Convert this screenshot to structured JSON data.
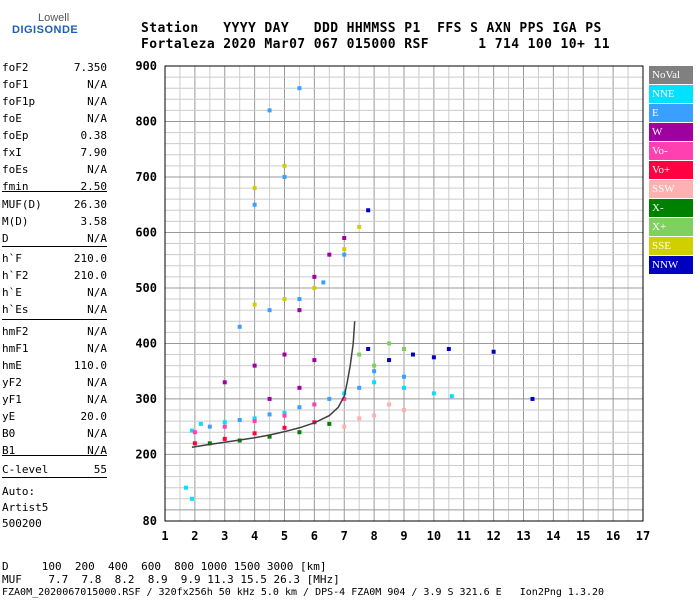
{
  "logo": {
    "line1": "Lowell",
    "line2": "DIGISONDE"
  },
  "header": {
    "row1": "Station   YYYY DAY   DDD HHMMSS P1  FFS S AXN PPS IGA PS",
    "row2": "Fortaleza 2020 Mar07 067 015000 RSF      1 714 100 10+ 11"
  },
  "params": [
    {
      "name": "foF2",
      "value": "7.350"
    },
    {
      "name": "foF1",
      "value": "N/A"
    },
    {
      "name": "foF1p",
      "value": "N/A"
    },
    {
      "name": "foE",
      "value": "N/A"
    },
    {
      "name": "foEp",
      "value": "0.38"
    },
    {
      "name": "fxI",
      "value": "7.90"
    },
    {
      "name": "foEs",
      "value": "N/A"
    },
    {
      "name": "fmin",
      "value": "2.50"
    },
    {
      "name": "MUF(D)",
      "value": "26.30"
    },
    {
      "name": "M(D)",
      "value": "3.58"
    },
    {
      "name": "D",
      "value": "N/A"
    },
    {
      "name": "h`F",
      "value": "210.0"
    },
    {
      "name": "h`F2",
      "value": "210.0"
    },
    {
      "name": "h`E",
      "value": "N/A"
    },
    {
      "name": "h`Es",
      "value": "N/A"
    },
    {
      "name": "hmF2",
      "value": "N/A"
    },
    {
      "name": "hmF1",
      "value": "N/A"
    },
    {
      "name": "hmE",
      "value": "110.0"
    },
    {
      "name": "yF2",
      "value": "N/A"
    },
    {
      "name": "yF1",
      "value": "N/A"
    },
    {
      "name": "yE",
      "value": "20.0"
    },
    {
      "name": "B0",
      "value": "N/A"
    },
    {
      "name": "B1",
      "value": "N/A"
    },
    {
      "name": "C-level",
      "value": "55"
    }
  ],
  "auto": {
    "line1": "Auto:",
    "line2": "Artist5",
    "line3": "500200"
  },
  "legend": [
    {
      "label": "NoVal",
      "color": "#808080"
    },
    {
      "label": "NNE",
      "color": "#00e0ff"
    },
    {
      "label": "E",
      "color": "#3aa0ff"
    },
    {
      "label": "W",
      "color": "#a000a0"
    },
    {
      "label": "Vo-",
      "color": "#ff40b0"
    },
    {
      "label": "Vo+",
      "color": "#ff0040"
    },
    {
      "label": "SSW",
      "color": "#ffb0b0"
    },
    {
      "label": "X-",
      "color": "#008000"
    },
    {
      "label": "X+",
      "color": "#80d060"
    },
    {
      "label": "SSE",
      "color": "#d0d000"
    },
    {
      "label": "NNW",
      "color": "#0000c0"
    }
  ],
  "footer": {
    "d_row": "D     100  200  400  600  800 1000 1500 3000 [km]",
    "muf_row": "MUF    7.7  7.8  8.2  8.9  9.9 11.3 15.5 26.3 [MHz]",
    "info_row": "FZA0M_2020067015000.RSF / 320fx256h 50 kHz 5.0 km / DPS-4 FZA0M 904 / 3.9 S 321.6 E   Ion2Png 1.3.20"
  },
  "chart_data": {
    "type": "scatter",
    "title": "",
    "xlabel": "",
    "ylabel": "",
    "xlim": [
      1,
      17
    ],
    "ylim": [
      80,
      900
    ],
    "x_ticks": [
      1,
      2,
      3,
      4,
      5,
      6,
      7,
      8,
      9,
      10,
      11,
      12,
      13,
      14,
      15,
      16,
      17
    ],
    "y_ticks": [
      80,
      200,
      300,
      400,
      500,
      600,
      700,
      800,
      900
    ],
    "grid": true,
    "legend_position": "right",
    "trace": {
      "name": "",
      "color": "#404040",
      "x": [
        1.9,
        2.5,
        3.0,
        3.5,
        4.0,
        4.5,
        5.0,
        5.5,
        6.0,
        6.5,
        6.8,
        7.0,
        7.1,
        7.2,
        7.3,
        7.35
      ],
      "y": [
        213,
        218,
        222,
        226,
        230,
        235,
        241,
        248,
        257,
        270,
        285,
        305,
        330,
        360,
        400,
        440
      ]
    },
    "series": [
      {
        "name": "NNE",
        "points": [
          [
            1.9,
            243
          ],
          [
            2.2,
            255
          ],
          [
            3.0,
            258
          ],
          [
            4.0,
            265
          ],
          [
            5.0,
            275
          ],
          [
            6.0,
            290
          ],
          [
            7.0,
            310
          ],
          [
            8.0,
            330
          ],
          [
            9.0,
            320
          ],
          [
            10.0,
            310
          ],
          [
            10.6,
            305
          ],
          [
            1.7,
            140
          ],
          [
            1.9,
            120
          ]
        ]
      },
      {
        "name": "E",
        "points": [
          [
            2.5,
            250
          ],
          [
            3.5,
            262
          ],
          [
            4.5,
            272
          ],
          [
            5.5,
            285
          ],
          [
            6.5,
            300
          ],
          [
            7.5,
            320
          ],
          [
            8.0,
            350
          ],
          [
            9.0,
            340
          ],
          [
            3.5,
            430
          ],
          [
            4.5,
            460
          ],
          [
            5.5,
            480
          ],
          [
            6.3,
            510
          ],
          [
            7.0,
            560
          ],
          [
            4.0,
            650
          ],
          [
            5.0,
            700
          ],
          [
            4.5,
            820
          ],
          [
            5.5,
            860
          ]
        ]
      },
      {
        "name": "W",
        "points": [
          [
            3.0,
            330
          ],
          [
            4.0,
            360
          ],
          [
            5.0,
            380
          ],
          [
            6.0,
            370
          ],
          [
            5.5,
            460
          ],
          [
            6.0,
            520
          ],
          [
            6.5,
            560
          ],
          [
            7.0,
            590
          ],
          [
            4.5,
            300
          ],
          [
            5.5,
            320
          ]
        ]
      },
      {
        "name": "Vo-",
        "points": [
          [
            2.0,
            240
          ],
          [
            3.0,
            250
          ],
          [
            4.0,
            260
          ],
          [
            5.0,
            270
          ],
          [
            6.0,
            290
          ],
          [
            7.0,
            300
          ]
        ]
      },
      {
        "name": "Vo+",
        "points": [
          [
            2.0,
            220
          ],
          [
            3.0,
            228
          ],
          [
            4.0,
            238
          ],
          [
            5.0,
            248
          ],
          [
            6.0,
            258
          ]
        ]
      },
      {
        "name": "SSW",
        "points": [
          [
            7.0,
            250
          ],
          [
            7.5,
            265
          ],
          [
            8.0,
            270
          ],
          [
            8.5,
            290
          ],
          [
            9.0,
            280
          ]
        ]
      },
      {
        "name": "X-",
        "points": [
          [
            2.5,
            220
          ],
          [
            3.5,
            225
          ],
          [
            4.5,
            232
          ],
          [
            5.5,
            240
          ],
          [
            6.5,
            255
          ]
        ]
      },
      {
        "name": "X+",
        "points": [
          [
            7.5,
            380
          ],
          [
            8.0,
            360
          ],
          [
            8.5,
            400
          ],
          [
            9.0,
            390
          ]
        ]
      },
      {
        "name": "SSE",
        "points": [
          [
            4.0,
            470
          ],
          [
            5.0,
            480
          ],
          [
            6.0,
            500
          ],
          [
            7.0,
            570
          ],
          [
            7.5,
            610
          ],
          [
            4.0,
            680
          ],
          [
            5.0,
            720
          ]
        ]
      },
      {
        "name": "NNW",
        "points": [
          [
            7.8,
            390
          ],
          [
            8.5,
            370
          ],
          [
            9.3,
            380
          ],
          [
            10.0,
            375
          ],
          [
            10.5,
            390
          ],
          [
            12.0,
            385
          ],
          [
            13.3,
            300
          ],
          [
            7.8,
            640
          ]
        ]
      }
    ]
  }
}
